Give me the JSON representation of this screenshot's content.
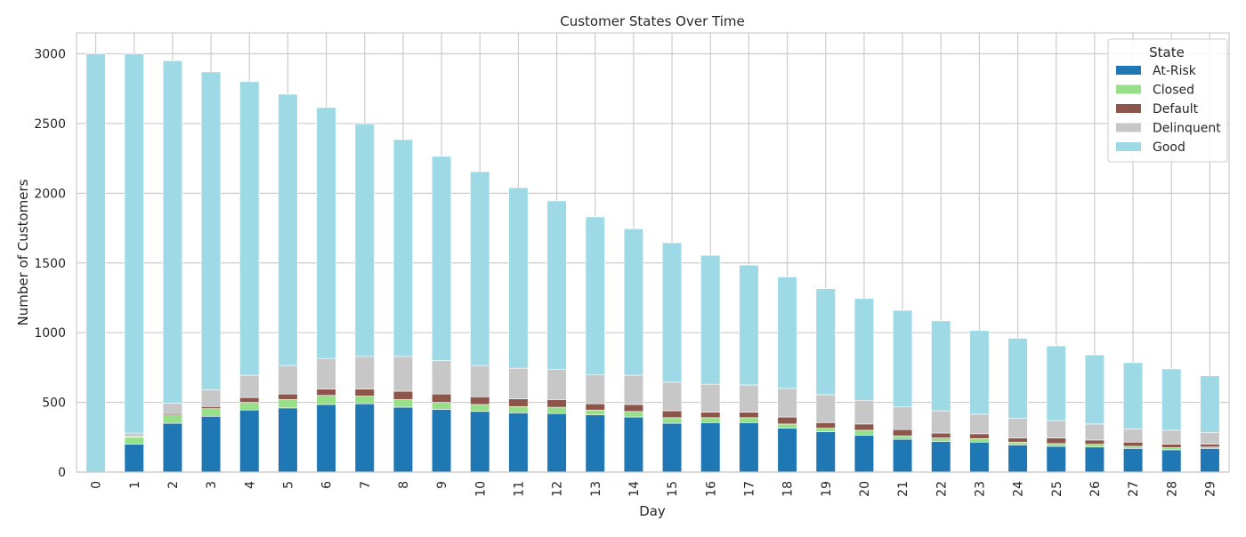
{
  "chart_data": {
    "type": "bar",
    "stacked": true,
    "title": "Customer States Over Time",
    "xlabel": "Day",
    "ylabel": "Number of Customers",
    "ylim": [
      0,
      3150
    ],
    "yticks": [
      0,
      500,
      1000,
      1500,
      2000,
      2500,
      3000
    ],
    "grid": true,
    "legend_title": "State",
    "legend_position": "top-right",
    "categories": [
      "0",
      "1",
      "2",
      "3",
      "4",
      "5",
      "6",
      "7",
      "8",
      "9",
      "10",
      "11",
      "12",
      "13",
      "14",
      "15",
      "16",
      "17",
      "18",
      "19",
      "20",
      "21",
      "22",
      "23",
      "24",
      "25",
      "26",
      "27",
      "28",
      "29"
    ],
    "series": [
      {
        "name": "At-Risk",
        "color": "#1f77b4",
        "values": [
          0,
          200,
          350,
          400,
          445,
          460,
          485,
          490,
          465,
          450,
          435,
          425,
          420,
          410,
          395,
          350,
          355,
          355,
          315,
          290,
          265,
          235,
          220,
          215,
          195,
          185,
          180,
          170,
          160,
          170
        ]
      },
      {
        "name": "Closed",
        "color": "#98df8a",
        "values": [
          0,
          50,
          60,
          55,
          55,
          60,
          65,
          55,
          55,
          50,
          50,
          45,
          45,
          35,
          40,
          40,
          35,
          35,
          30,
          25,
          35,
          25,
          25,
          25,
          20,
          20,
          20,
          15,
          15,
          10
        ]
      },
      {
        "name": "Default",
        "color": "#8c564b",
        "values": [
          0,
          5,
          10,
          15,
          35,
          40,
          45,
          50,
          60,
          60,
          55,
          55,
          55,
          45,
          50,
          50,
          40,
          40,
          50,
          40,
          45,
          45,
          35,
          35,
          30,
          40,
          30,
          30,
          25,
          20
        ]
      },
      {
        "name": "Delinquent",
        "color": "#c7c7c7",
        "values": [
          0,
          25,
          75,
          120,
          160,
          205,
          220,
          235,
          250,
          240,
          225,
          220,
          215,
          210,
          210,
          205,
          200,
          195,
          205,
          200,
          170,
          165,
          160,
          140,
          140,
          125,
          115,
          95,
          100,
          85
        ]
      },
      {
        "name": "Good",
        "color": "#9edae5",
        "values": [
          3000,
          2720,
          2455,
          2280,
          2105,
          1945,
          1800,
          1665,
          1555,
          1465,
          1390,
          1295,
          1210,
          1130,
          1050,
          1000,
          925,
          860,
          800,
          760,
          730,
          690,
          645,
          600,
          575,
          535,
          495,
          475,
          440,
          405
        ]
      }
    ]
  }
}
